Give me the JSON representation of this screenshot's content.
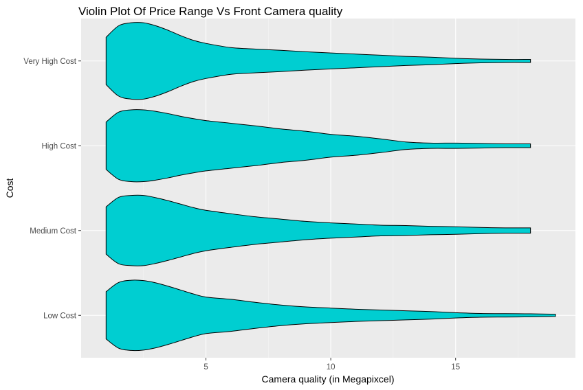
{
  "chart_data": {
    "type": "violin",
    "title": "Violin Plot Of Price Range Vs Front Camera quality",
    "xlabel": "Camera quality (in Megapixcel)",
    "ylabel": "Cost",
    "xlim": [
      0.0,
      19.8
    ],
    "x_ticks": [
      5,
      10,
      15
    ],
    "categories": [
      "Low Cost",
      "Medium Cost",
      "High Cost",
      "Very High Cost"
    ],
    "fill_color": "#00CED1",
    "background_color": "#EBEBEB",
    "grid": true,
    "series": [
      {
        "category": "Low Cost",
        "density_x": [
          1,
          1.5,
          2,
          2.5,
          3,
          3.5,
          4,
          4.5,
          5,
          6,
          7,
          8,
          9,
          10,
          11,
          12,
          13,
          14,
          15,
          16,
          17,
          18,
          19
        ],
        "density_width": [
          0.62,
          0.86,
          0.92,
          0.91,
          0.85,
          0.76,
          0.66,
          0.56,
          0.48,
          0.42,
          0.34,
          0.27,
          0.22,
          0.19,
          0.16,
          0.14,
          0.12,
          0.1,
          0.07,
          0.05,
          0.045,
          0.04,
          0.03
        ]
      },
      {
        "category": "Medium Cost",
        "density_x": [
          1,
          1.5,
          2,
          2.5,
          3,
          3.5,
          4,
          4.5,
          5,
          6,
          7,
          8,
          9,
          10,
          11,
          12,
          13,
          14,
          15,
          16,
          17,
          18
        ],
        "density_width": [
          0.62,
          0.87,
          0.92,
          0.92,
          0.86,
          0.78,
          0.69,
          0.6,
          0.53,
          0.44,
          0.36,
          0.3,
          0.24,
          0.2,
          0.17,
          0.14,
          0.13,
          0.11,
          0.1,
          0.08,
          0.07,
          0.07
        ]
      },
      {
        "category": "High Cost",
        "density_x": [
          1,
          1.5,
          2,
          2.5,
          3,
          3.5,
          4,
          4.5,
          5,
          6,
          7,
          8,
          9,
          10,
          11,
          12,
          13,
          14,
          15,
          16,
          17,
          18
        ],
        "density_width": [
          0.62,
          0.88,
          0.94,
          0.94,
          0.9,
          0.84,
          0.77,
          0.71,
          0.66,
          0.59,
          0.52,
          0.44,
          0.38,
          0.3,
          0.25,
          0.18,
          0.1,
          0.07,
          0.07,
          0.06,
          0.05,
          0.05
        ]
      },
      {
        "category": "Very High Cost",
        "density_x": [
          1,
          1.5,
          2,
          2.5,
          3,
          3.5,
          4,
          4.5,
          5,
          6,
          7,
          8,
          9,
          10,
          11,
          12,
          13,
          14,
          15,
          16,
          17,
          18
        ],
        "density_width": [
          0.62,
          0.92,
          1.0,
          1.0,
          0.92,
          0.8,
          0.66,
          0.54,
          0.46,
          0.35,
          0.31,
          0.28,
          0.24,
          0.21,
          0.18,
          0.15,
          0.12,
          0.1,
          0.07,
          0.05,
          0.04,
          0.04
        ]
      }
    ]
  }
}
